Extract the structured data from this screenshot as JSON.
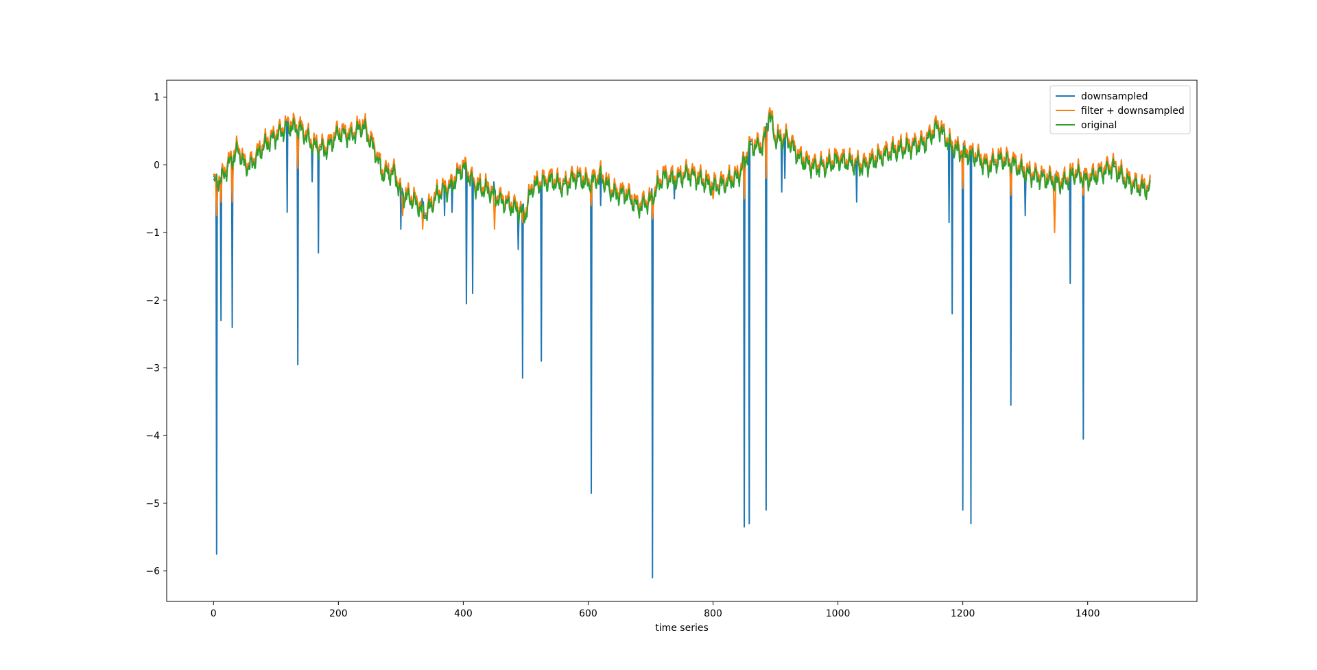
{
  "chart_data": {
    "type": "line",
    "xlabel": "time series",
    "ylabel": "",
    "xlim": [
      -75,
      1575
    ],
    "ylim": [
      -6.45,
      1.25
    ],
    "x_ticks": [
      0,
      200,
      400,
      600,
      800,
      1000,
      1200,
      1400
    ],
    "y_ticks": [
      1,
      0,
      -1,
      -2,
      -3,
      -4,
      -5,
      -6
    ],
    "x_tick_labels": [
      "0",
      "200",
      "400",
      "600",
      "800",
      "1000",
      "1200",
      "1400"
    ],
    "y_tick_labels": [
      "1",
      "0",
      "−1",
      "−2",
      "−3",
      "−4",
      "−5",
      "−6"
    ],
    "grid": false,
    "legend_position": "top-right",
    "x_start": 0,
    "x_end": 1500,
    "series": [
      {
        "name": "downsampled",
        "color": "#1f77b4"
      },
      {
        "name": "filter + downsampled",
        "color": "#ff7f0e"
      },
      {
        "name": "original",
        "color": "#2ca02c"
      }
    ],
    "baseline": [
      [
        0,
        -0.25
      ],
      [
        15,
        -0.15
      ],
      [
        25,
        0.05
      ],
      [
        40,
        0.25
      ],
      [
        50,
        0.0
      ],
      [
        60,
        0.02
      ],
      [
        80,
        0.3
      ],
      [
        100,
        0.45
      ],
      [
        120,
        0.6
      ],
      [
        140,
        0.55
      ],
      [
        160,
        0.3
      ],
      [
        180,
        0.25
      ],
      [
        200,
        0.5
      ],
      [
        220,
        0.45
      ],
      [
        240,
        0.6
      ],
      [
        260,
        0.2
      ],
      [
        270,
        -0.1
      ],
      [
        290,
        -0.1
      ],
      [
        300,
        -0.4
      ],
      [
        320,
        -0.5
      ],
      [
        340,
        -0.7
      ],
      [
        360,
        -0.4
      ],
      [
        380,
        -0.3
      ],
      [
        400,
        0.0
      ],
      [
        420,
        -0.3
      ],
      [
        440,
        -0.35
      ],
      [
        460,
        -0.5
      ],
      [
        480,
        -0.6
      ],
      [
        500,
        -0.7
      ],
      [
        510,
        -0.3
      ],
      [
        540,
        -0.2
      ],
      [
        560,
        -0.3
      ],
      [
        580,
        -0.15
      ],
      [
        600,
        -0.25
      ],
      [
        620,
        -0.15
      ],
      [
        640,
        -0.4
      ],
      [
        660,
        -0.4
      ],
      [
        680,
        -0.6
      ],
      [
        700,
        -0.5
      ],
      [
        720,
        -0.15
      ],
      [
        740,
        -0.2
      ],
      [
        760,
        -0.1
      ],
      [
        780,
        -0.2
      ],
      [
        800,
        -0.3
      ],
      [
        820,
        -0.25
      ],
      [
        840,
        -0.15
      ],
      [
        860,
        0.3
      ],
      [
        880,
        0.3
      ],
      [
        890,
        0.8
      ],
      [
        900,
        0.4
      ],
      [
        920,
        0.4
      ],
      [
        940,
        0.1
      ],
      [
        960,
        0.0
      ],
      [
        980,
        0.0
      ],
      [
        1000,
        0.1
      ],
      [
        1040,
        0.0
      ],
      [
        1080,
        0.2
      ],
      [
        1120,
        0.3
      ],
      [
        1140,
        0.35
      ],
      [
        1160,
        0.6
      ],
      [
        1180,
        0.3
      ],
      [
        1200,
        0.2
      ],
      [
        1220,
        0.15
      ],
      [
        1240,
        0.0
      ],
      [
        1260,
        0.1
      ],
      [
        1280,
        0.05
      ],
      [
        1300,
        -0.1
      ],
      [
        1320,
        -0.15
      ],
      [
        1340,
        -0.2
      ],
      [
        1360,
        -0.25
      ],
      [
        1380,
        -0.1
      ],
      [
        1400,
        -0.2
      ],
      [
        1420,
        -0.1
      ],
      [
        1440,
        0.0
      ],
      [
        1460,
        -0.2
      ],
      [
        1480,
        -0.3
      ],
      [
        1500,
        -0.35
      ]
    ],
    "downsampled_spikes": [
      [
        5,
        -5.75
      ],
      [
        12,
        -2.3
      ],
      [
        30,
        -2.4
      ],
      [
        118,
        -0.7
      ],
      [
        135,
        -2.95
      ],
      [
        158,
        -0.25
      ],
      [
        168,
        -1.3
      ],
      [
        300,
        -0.95
      ],
      [
        370,
        -0.75
      ],
      [
        382,
        -0.7
      ],
      [
        405,
        -2.05
      ],
      [
        415,
        -1.9
      ],
      [
        488,
        -1.25
      ],
      [
        495,
        -3.15
      ],
      [
        525,
        -2.9
      ],
      [
        605,
        -4.85
      ],
      [
        620,
        -0.6
      ],
      [
        703,
        -6.1
      ],
      [
        738,
        -0.5
      ],
      [
        850,
        -5.35
      ],
      [
        858,
        -5.3
      ],
      [
        885,
        -5.1
      ],
      [
        910,
        -0.4
      ],
      [
        915,
        -0.2
      ],
      [
        1030,
        -0.55
      ],
      [
        1178,
        -0.85
      ],
      [
        1183,
        -2.2
      ],
      [
        1200,
        -5.1
      ],
      [
        1213,
        -5.3
      ],
      [
        1277,
        -3.55
      ],
      [
        1300,
        -0.75
      ],
      [
        1372,
        -1.75
      ],
      [
        1393,
        -4.05
      ]
    ],
    "filter_dips": [
      [
        5,
        -0.75
      ],
      [
        12,
        -0.55
      ],
      [
        30,
        -0.55
      ],
      [
        135,
        -0.05
      ],
      [
        303,
        -0.75
      ],
      [
        335,
        -0.95
      ],
      [
        450,
        -0.95
      ],
      [
        495,
        -0.85
      ],
      [
        605,
        -0.6
      ],
      [
        703,
        -0.8
      ],
      [
        800,
        -0.5
      ],
      [
        850,
        -0.5
      ],
      [
        885,
        -0.2
      ],
      [
        1200,
        -0.35
      ],
      [
        1277,
        -0.45
      ],
      [
        1347,
        -1.0
      ],
      [
        1393,
        -0.45
      ]
    ]
  }
}
